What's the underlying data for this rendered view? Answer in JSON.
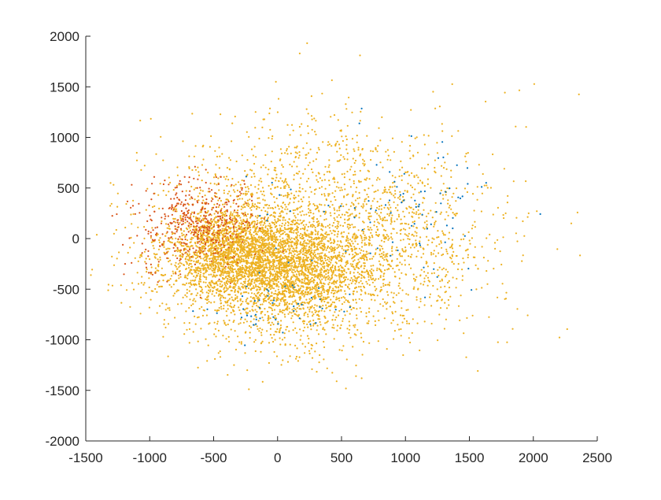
{
  "chart_data": {
    "type": "scatter",
    "title": "",
    "xlabel": "",
    "ylabel": "",
    "xlim": [
      -1500,
      2500
    ],
    "ylim": [
      -2000,
      2000
    ],
    "x_ticks": [
      -1500,
      -1000,
      -500,
      0,
      500,
      1000,
      1500,
      2000,
      2500
    ],
    "y_ticks": [
      -2000,
      -1500,
      -1000,
      -500,
      0,
      500,
      1000,
      1500,
      2000
    ],
    "x_tick_labels": [
      "-1500",
      "-1000",
      "-500",
      "0",
      "500",
      "1000",
      "1500",
      "2000",
      "2500"
    ],
    "y_tick_labels": [
      "-2000",
      "-1500",
      "-1000",
      "-500",
      "0",
      "500",
      "1000",
      "1500",
      "2000"
    ],
    "grid": false,
    "legend": "none",
    "series": [
      {
        "color": "#EDB120",
        "clusters": [
          {
            "center": [
              -150,
              -250
            ],
            "spread": [
              420,
              300
            ],
            "count": 2000
          },
          {
            "center": [
              -350,
              -100
            ],
            "spread": [
              220,
              180
            ],
            "count": 1200
          },
          {
            "center": [
              150,
              -350
            ],
            "spread": [
              300,
              200
            ],
            "count": 900
          },
          {
            "center": [
              300,
              50
            ],
            "spread": [
              600,
              450
            ],
            "count": 1200
          },
          {
            "center": [
              950,
              -150
            ],
            "spread": [
              450,
              450
            ],
            "count": 550
          },
          {
            "center": [
              150,
              -850
            ],
            "spread": [
              300,
              250
            ],
            "count": 200
          },
          {
            "center": [
              100,
              700
            ],
            "spread": [
              500,
              300
            ],
            "count": 220
          },
          {
            "center": [
              700,
              1050
            ],
            "spread": [
              700,
              280
            ],
            "count": 60
          }
        ]
      },
      {
        "color": "#D95319",
        "clusters": [
          {
            "center": [
              -550,
              180
            ],
            "spread": [
              210,
              210
            ],
            "count": 330
          },
          {
            "center": [
              -880,
              80
            ],
            "spread": [
              160,
              260
            ],
            "count": 110
          }
        ]
      },
      {
        "color": "#0072BD",
        "clusters": [
          {
            "center": [
              1150,
              150
            ],
            "spread": [
              260,
              380
            ],
            "count": 55
          },
          {
            "center": [
              0,
              -650
            ],
            "spread": [
              260,
              130
            ],
            "count": 45
          },
          {
            "center": [
              650,
              200
            ],
            "spread": [
              600,
              500
            ],
            "count": 30
          }
        ]
      }
    ]
  }
}
